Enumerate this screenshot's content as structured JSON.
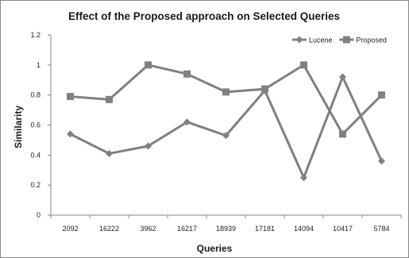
{
  "chart_data": {
    "type": "line",
    "title": "Effect of the Proposed approach on Selected Queries",
    "xlabel": "Queries",
    "ylabel": "Similarity",
    "categories": [
      "2092",
      "16222",
      "3962",
      "16217",
      "18939",
      "17181",
      "14094",
      "10417",
      "5784"
    ],
    "ylim": [
      0,
      1.2
    ],
    "yticks": [
      "0",
      "0.2",
      "0.4",
      "0.6",
      "0.8",
      "1",
      "1.2"
    ],
    "grid": false,
    "legend_position": "top-right",
    "series": [
      {
        "name": "Lucene",
        "marker": "diamond",
        "values": [
          0.54,
          0.41,
          0.46,
          0.62,
          0.53,
          0.83,
          0.25,
          0.92,
          0.36
        ]
      },
      {
        "name": "Proposed",
        "marker": "square",
        "values": [
          0.79,
          0.77,
          1.0,
          0.94,
          0.82,
          0.84,
          1.0,
          0.54,
          0.8
        ]
      }
    ],
    "colors": {
      "line": "#7f7f7f",
      "marker": "#808080",
      "axis": "#868686"
    }
  }
}
